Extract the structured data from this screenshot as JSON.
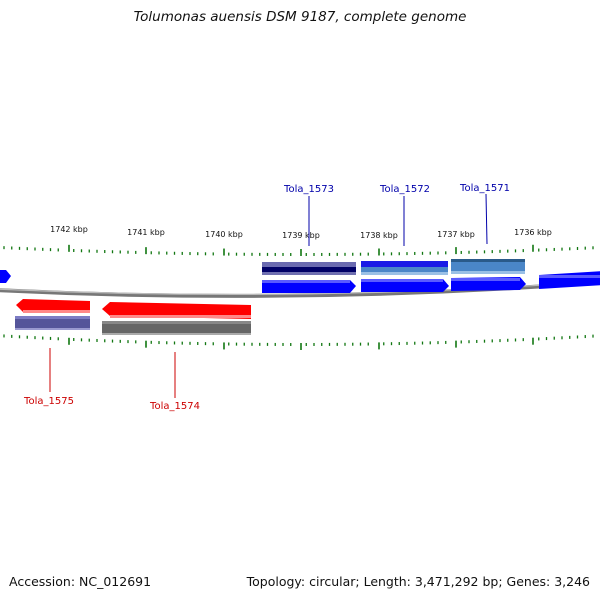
{
  "header": {
    "title": "Tolumonas auensis DSM 9187, complete genome"
  },
  "footer": {
    "accession": "Accession: NC_012691",
    "topology": "Topology: circular; Length: 3,471,292 bp; Genes: 3,246"
  },
  "colors": {
    "forward_cds": "#0000ff",
    "reverse_cds": "#ff0000",
    "gc_dark": "#000066",
    "gc_purple": "#55559a",
    "gc_light": "#4a86c8",
    "gc_grey": "#666666",
    "tick": "#117711",
    "backbone": "#888888",
    "forward_label": "#0000aa",
    "reverse_label": "#cc0000"
  },
  "ticks": [
    {
      "label": "1742 kbp"
    },
    {
      "label": "1741 kbp"
    },
    {
      "label": "1740 kbp"
    },
    {
      "label": "1739 kbp"
    },
    {
      "label": "1738 kbp"
    },
    {
      "label": "1737 kbp"
    },
    {
      "label": "1736 kbp"
    }
  ],
  "genes": [
    {
      "name": "Tola_1573",
      "strand": "+"
    },
    {
      "name": "Tola_1572",
      "strand": "+"
    },
    {
      "name": "Tola_1571",
      "strand": "+"
    },
    {
      "name": "Tola_1575",
      "strand": "-"
    },
    {
      "name": "Tola_1574",
      "strand": "-"
    }
  ]
}
